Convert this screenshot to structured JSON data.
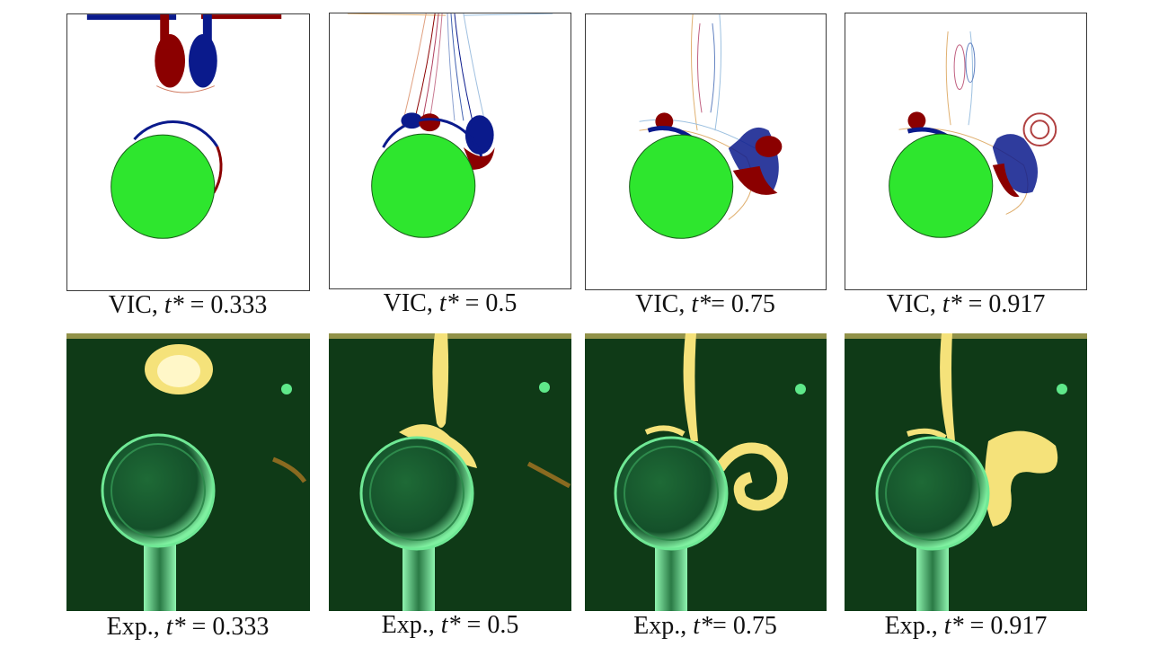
{
  "colors": {
    "cylinder_fill": "#2ee62e",
    "vorticity_positive": "#8b0000",
    "vorticity_negative": "#0a1a8c",
    "experiment_background": "#0f3a17",
    "dye": "#f5e27a",
    "sphere_glow": "#5fe88a"
  },
  "top_row": {
    "captions": [
      {
        "prefix": "VIC, ",
        "var": "t*",
        "suffix": " = 0.333"
      },
      {
        "prefix": "VIC, ",
        "var": "t*",
        "suffix": " = 0.5"
      },
      {
        "prefix": "VIC, ",
        "var": "t*",
        "suffix": "= 0.75"
      },
      {
        "prefix": "VIC, ",
        "var": "t*",
        "suffix": " = 0.917"
      }
    ]
  },
  "bottom_row": {
    "captions": [
      {
        "prefix": "Exp., ",
        "var": "t*",
        "suffix": " = 0.333"
      },
      {
        "prefix": "Exp., ",
        "var": "t*",
        "suffix": " = 0.5"
      },
      {
        "prefix": "Exp., ",
        "var": "t*",
        "suffix": "= 0.75"
      },
      {
        "prefix": "Exp., ",
        "var": "t*",
        "suffix": " = 0.917"
      }
    ]
  }
}
